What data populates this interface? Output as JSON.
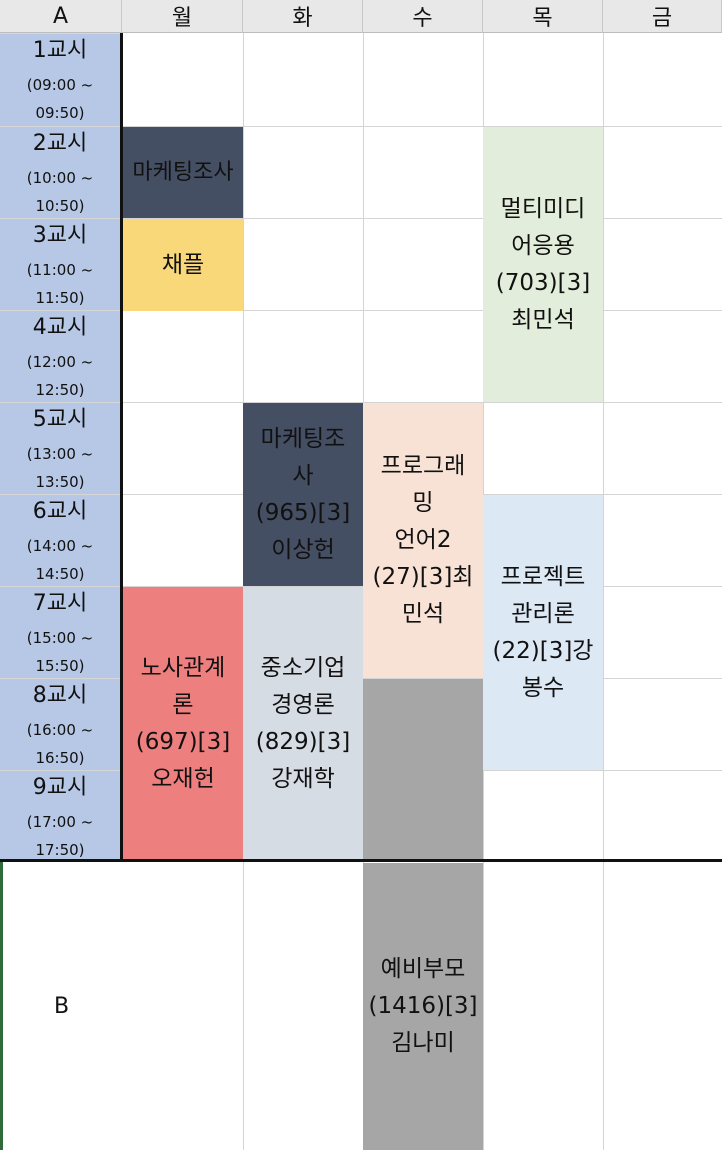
{
  "header": {
    "corner": "A",
    "days": [
      "월",
      "화",
      "수",
      "목",
      "금"
    ]
  },
  "periods": [
    {
      "label": "1교시",
      "time1": "(09:00 ~",
      "time2": "09:50)"
    },
    {
      "label": "2교시",
      "time1": "(10:00 ~",
      "time2": "10:50)"
    },
    {
      "label": "3교시",
      "time1": "(11:00 ~",
      "time2": "11:50)"
    },
    {
      "label": "4교시",
      "time1": "(12:00 ~",
      "time2": "12:50)"
    },
    {
      "label": "5교시",
      "time1": "(13:00 ~",
      "time2": "13:50)"
    },
    {
      "label": "6교시",
      "time1": "(14:00 ~",
      "time2": "14:50)"
    },
    {
      "label": "7교시",
      "time1": "(15:00 ~",
      "time2": "15:50)"
    },
    {
      "label": "8교시",
      "time1": "(16:00 ~",
      "time2": "16:50)"
    },
    {
      "label": "9교시",
      "time1": "(17:00 ~",
      "time2": "17:50)"
    }
  ],
  "row_b_label": "B",
  "courses": {
    "mon_marketing": {
      "text": "마케팅조사",
      "color": "#454f63"
    },
    "mon_chapel": {
      "text": "채플",
      "color": "#f9d87a"
    },
    "mon_labor": {
      "text": "노사관계\n론\n(697)[3]\n오재헌",
      "color": "#ee7f7f"
    },
    "tue_marketing": {
      "text": "마케팅조\n사\n(965)[3]\n이상헌",
      "color": "#454f63"
    },
    "tue_sme": {
      "text": "중소기업\n경영론\n(829)[3]\n강재학",
      "color": "#d6dce4"
    },
    "wed_programming": {
      "text": "프로그래\n밍\n언어2\n(27)[3]최\n민석",
      "color": "#f8e2d6"
    },
    "wed_gray": {
      "text": "",
      "color": "#a6a6a6"
    },
    "wed_reserve": {
      "text": "예비부모\n(1416)[3]\n김나미",
      "color": "#a6a6a6"
    },
    "thu_multimedia": {
      "text": "멀티미디\n어응용\n(703)[3]\n최민석",
      "color": "#e3eddb"
    },
    "thu_project": {
      "text": "프로젝트\n관리론\n(22)[3]강\n봉수",
      "color": "#dde8f5"
    }
  }
}
